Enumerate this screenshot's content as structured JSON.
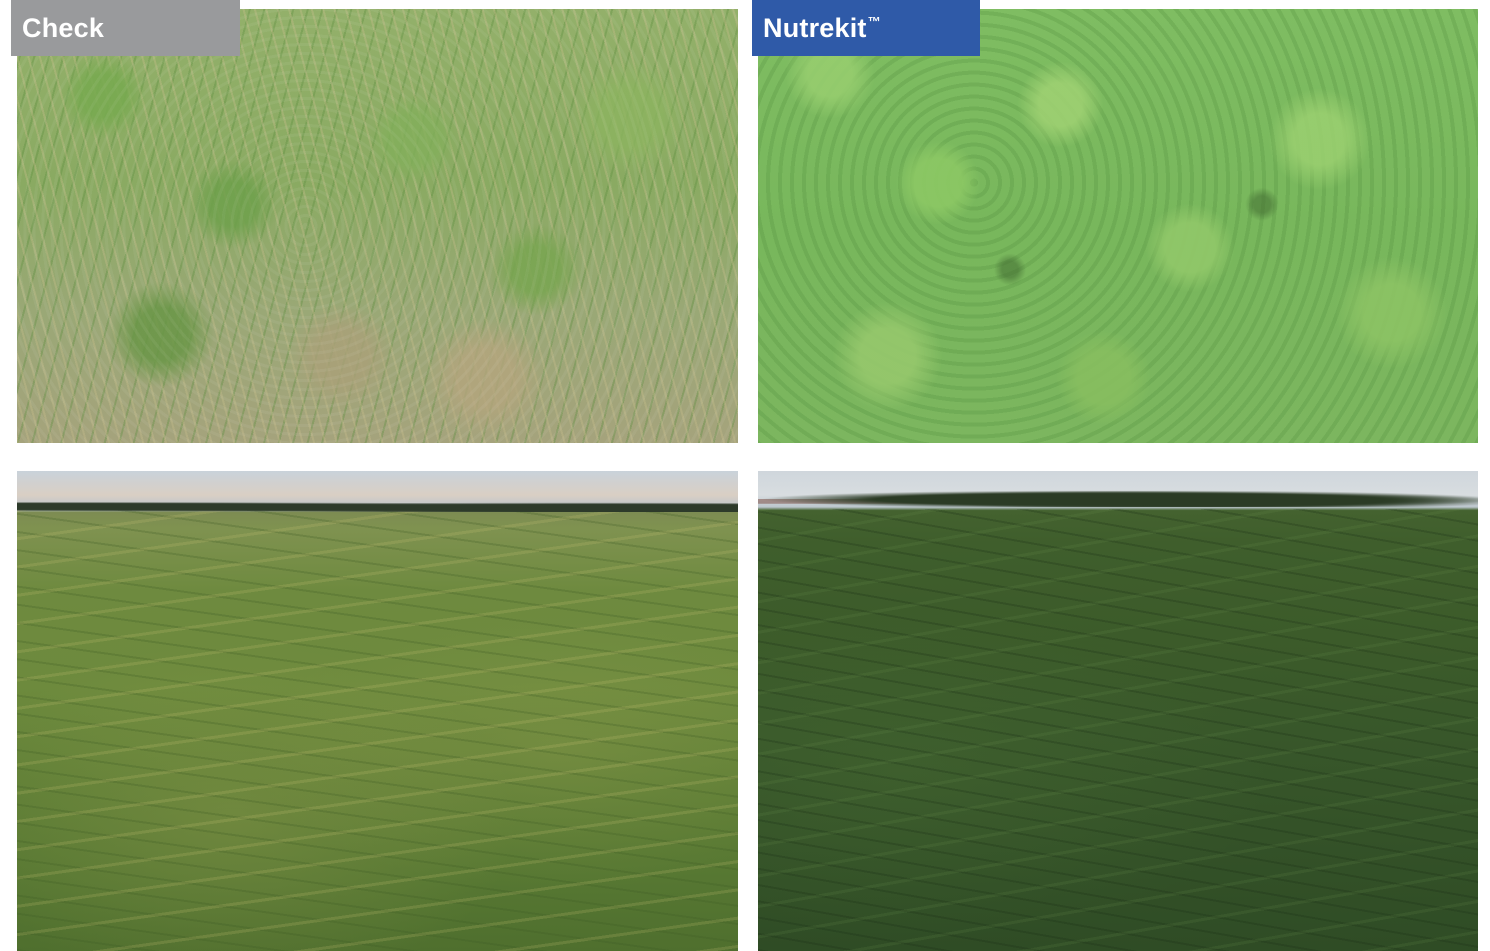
{
  "labels": {
    "check": {
      "text": "Check",
      "bg": "#999a9c"
    },
    "nutrekit": {
      "text": "Nutrekit",
      "trademark": "™",
      "bg": "#2f5aa8"
    }
  },
  "photos": [
    {
      "id": "check-closeup"
    },
    {
      "id": "nutrekit-closeup"
    },
    {
      "id": "check-field"
    },
    {
      "id": "nutrekit-field"
    }
  ]
}
